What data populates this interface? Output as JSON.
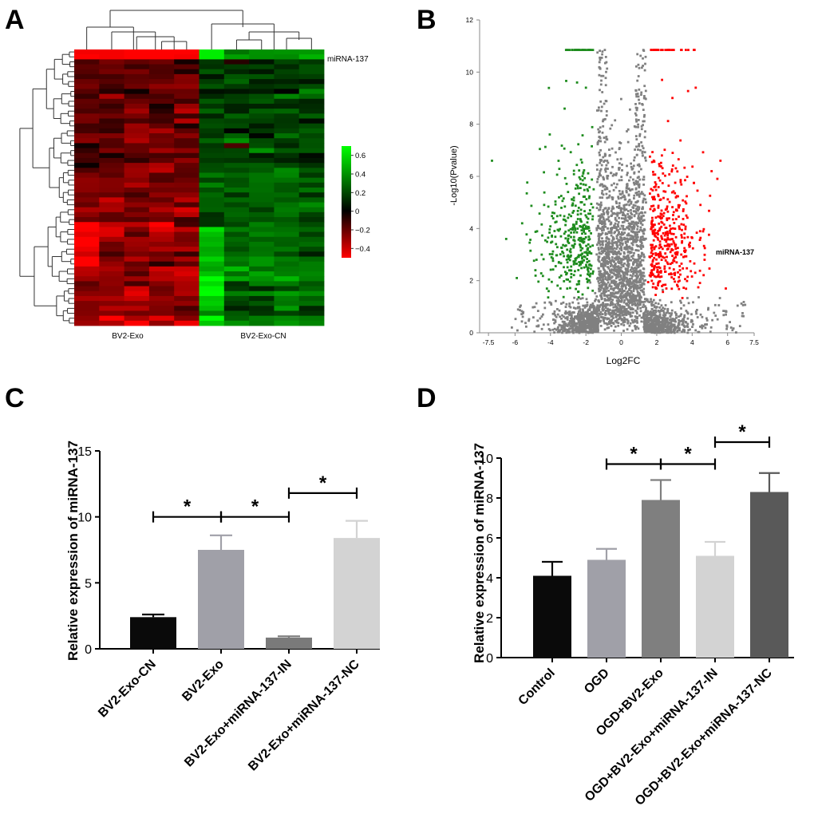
{
  "panels": {
    "a": "A",
    "b": "B",
    "c": "C",
    "d": "D"
  },
  "chart_data": [
    {
      "id": "A",
      "type": "heatmap",
      "title": "",
      "xlabel_groups": [
        "BV2-Exo",
        "BV2-Exo-CN"
      ],
      "row_label": "miRNA-137",
      "colorbar": {
        "ticks": [
          0.6,
          0.4,
          0.2,
          0,
          -0.2,
          -0.4
        ],
        "range": [
          -0.5,
          0.7
        ],
        "low_color": "#ff0000",
        "mid_color": "#000000",
        "high_color": "#00ff00"
      },
      "n_columns_per_group": 5,
      "n_rows": 56,
      "pattern": "BV2-Exo columns predominantly red (low); BV2-Exo-CN columns predominantly green/black (high); miRNA-137 row strongly red in BV2-Exo and green in BV2-Exo-CN"
    },
    {
      "id": "B",
      "type": "scatter",
      "title": "",
      "xlabel": "Log2FC",
      "ylabel": "-Log10(Pvalue)",
      "xlim": [
        -8,
        7.5
      ],
      "ylim": [
        0,
        12
      ],
      "xticks": [
        "-7.5",
        "-6",
        "-4",
        "-2",
        "0",
        "2",
        "4",
        "6",
        "7.5"
      ],
      "yticks": [
        "0",
        "2",
        "4",
        "6",
        "8",
        "10",
        "12"
      ],
      "annotation": "miRNA-137",
      "annotation_point": [
        3.6,
        3.1
      ],
      "series": [
        {
          "name": "down",
          "color": "#1e8c1e"
        },
        {
          "name": "not significant",
          "color": "#808080"
        },
        {
          "name": "up",
          "color": "#ff0000"
        }
      ],
      "cap_value": 10.85,
      "note": "Down-regulated (green) points at Log2FC < -1.5 and significant; up-regulated (red) at Log2FC > 1.5 and significant; grey elsewhere"
    },
    {
      "id": "C",
      "type": "bar",
      "categories": [
        "BV2-Exo-CN",
        "BV2-Exo",
        "BV2-Exo+miRNA-137-IN",
        "BV2-Exo+miRNA-137-NC"
      ],
      "values": [
        2.4,
        7.5,
        0.85,
        8.4
      ],
      "errors": [
        0.2,
        1.1,
        0.1,
        1.3
      ],
      "colors": [
        "#0a0a0a",
        "#a0a0a8",
        "#7a7a7a",
        "#d3d3d3"
      ],
      "xlabel": "",
      "ylabel": "Relative expression of miRNA-137",
      "ylim": [
        0,
        15
      ],
      "yticks": [
        "0",
        "5",
        "10",
        "15"
      ],
      "sig_mark": "*",
      "comparisons": [
        [
          0,
          1
        ],
        [
          1,
          2
        ],
        [
          2,
          3
        ]
      ],
      "comparison_levels": [
        10.0,
        10.0,
        11.8
      ]
    },
    {
      "id": "D",
      "type": "bar",
      "categories": [
        "Control",
        "OGD",
        "OGD+BV2-Exo",
        "OGD+BV2-Exo+miRNA-137-IN",
        "OGD+BV2-Exo+miRNA-137-NC"
      ],
      "values": [
        4.1,
        4.9,
        7.9,
        5.1,
        8.3
      ],
      "errors": [
        0.7,
        0.55,
        1.0,
        0.7,
        0.95
      ],
      "colors": [
        "#0a0a0a",
        "#a0a0a8",
        "#7f7f7f",
        "#d3d3d3",
        "#595959"
      ],
      "xlabel": "",
      "ylabel": "Relative expression of miRNA-137",
      "ylim": [
        0,
        10
      ],
      "yticks": [
        "0",
        "2",
        "4",
        "6",
        "8",
        "10"
      ],
      "sig_mark": "*",
      "comparisons": [
        [
          1,
          2
        ],
        [
          2,
          3
        ],
        [
          3,
          4
        ]
      ],
      "comparison_levels": [
        9.7,
        9.7,
        10.8
      ]
    }
  ]
}
